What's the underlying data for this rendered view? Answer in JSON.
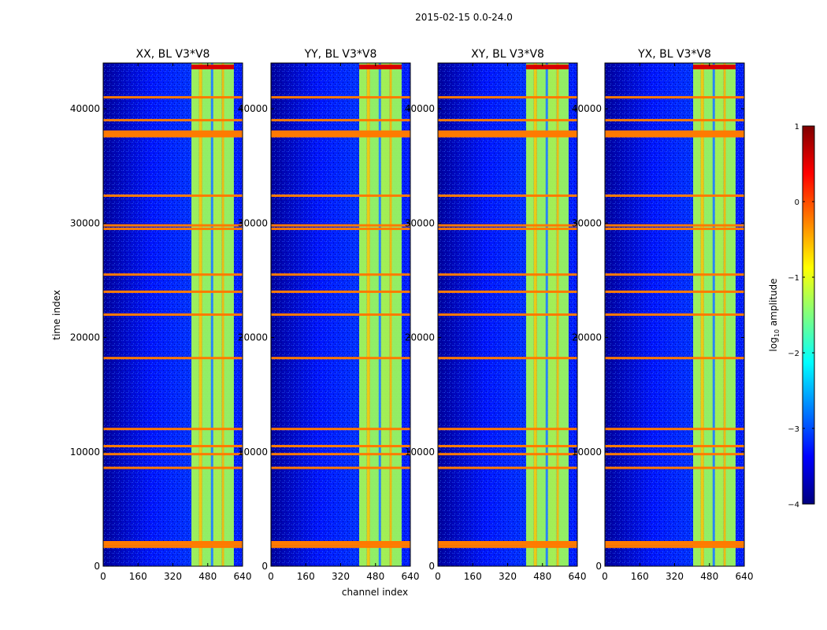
{
  "figure": {
    "suptitle": "2015-02-15 0.0-24.0",
    "xlabel": "channel index",
    "ylabel": "time index"
  },
  "colors": {
    "colormap": "jet",
    "stops": [
      "#00007f",
      "#0000ff",
      "#007fff",
      "#00ffff",
      "#7fff7f",
      "#ffff00",
      "#ff7f00",
      "#ff0000",
      "#7f0000"
    ]
  },
  "chart_data": [
    {
      "type": "heatmap",
      "title": "XX, BL V3*V8",
      "x_range": [
        0,
        640
      ],
      "y_range": [
        0,
        44000
      ],
      "x_ticks": [
        "0",
        "160",
        "320",
        "480",
        "640"
      ],
      "y_ticks": [
        "0",
        "10000",
        "20000",
        "30000",
        "40000"
      ],
      "x_tick_values": [
        0,
        160,
        320,
        480,
        640
      ],
      "y_tick_values": [
        0,
        10000,
        20000,
        30000,
        40000
      ],
      "band_channels": [
        {
          "start": 405,
          "end": 440
        },
        {
          "start": 440,
          "end": 455
        },
        {
          "start": 455,
          "end": 495
        },
        {
          "start": 495,
          "end": 505
        },
        {
          "start": 505,
          "end": 545
        },
        {
          "start": 545,
          "end": 555
        },
        {
          "start": 555,
          "end": 600
        }
      ],
      "flagged_time_rows": [
        1700,
        1900,
        2100,
        8600,
        9800,
        10500,
        12000,
        18200,
        22000,
        24000,
        25500,
        29500,
        29800,
        32400,
        37600,
        37800,
        38000,
        39000,
        41000
      ]
    },
    {
      "type": "heatmap",
      "title": "YY, BL V3*V8",
      "x_range": [
        0,
        640
      ],
      "y_range": [
        0,
        44000
      ],
      "x_ticks": [
        "0",
        "160",
        "320",
        "480",
        "640"
      ],
      "y_ticks": [
        "0",
        "10000",
        "20000",
        "30000",
        "40000"
      ],
      "x_tick_values": [
        0,
        160,
        320,
        480,
        640
      ],
      "y_tick_values": [
        0,
        10000,
        20000,
        30000,
        40000
      ],
      "band_channels": [
        {
          "start": 405,
          "end": 440
        },
        {
          "start": 440,
          "end": 455
        },
        {
          "start": 455,
          "end": 495
        },
        {
          "start": 495,
          "end": 505
        },
        {
          "start": 505,
          "end": 545
        },
        {
          "start": 545,
          "end": 555
        },
        {
          "start": 555,
          "end": 600
        }
      ],
      "flagged_time_rows": [
        1700,
        1900,
        2100,
        8600,
        9800,
        10500,
        12000,
        18200,
        22000,
        24000,
        25500,
        29500,
        29800,
        32400,
        37600,
        37800,
        38000,
        39000,
        41000
      ]
    },
    {
      "type": "heatmap",
      "title": "XY, BL V3*V8",
      "x_range": [
        0,
        640
      ],
      "y_range": [
        0,
        44000
      ],
      "x_ticks": [
        "0",
        "160",
        "320",
        "480",
        "640"
      ],
      "y_ticks": [
        "0",
        "10000",
        "20000",
        "30000",
        "40000"
      ],
      "x_tick_values": [
        0,
        160,
        320,
        480,
        640
      ],
      "y_tick_values": [
        0,
        10000,
        20000,
        30000,
        40000
      ],
      "band_channels": [
        {
          "start": 405,
          "end": 440
        },
        {
          "start": 440,
          "end": 455
        },
        {
          "start": 455,
          "end": 495
        },
        {
          "start": 495,
          "end": 505
        },
        {
          "start": 505,
          "end": 545
        },
        {
          "start": 545,
          "end": 555
        },
        {
          "start": 555,
          "end": 600
        }
      ],
      "flagged_time_rows": [
        1700,
        1900,
        2100,
        8600,
        9800,
        10500,
        12000,
        18200,
        22000,
        24000,
        25500,
        29500,
        29800,
        32400,
        37600,
        37800,
        38000,
        39000,
        41000
      ]
    },
    {
      "type": "heatmap",
      "title": "YX, BL V3*V8",
      "x_range": [
        0,
        640
      ],
      "y_range": [
        0,
        44000
      ],
      "x_ticks": [
        "0",
        "160",
        "320",
        "480",
        "640"
      ],
      "y_ticks": [
        "0",
        "10000",
        "20000",
        "30000",
        "40000"
      ],
      "x_tick_values": [
        0,
        160,
        320,
        480,
        640
      ],
      "y_tick_values": [
        0,
        10000,
        20000,
        30000,
        40000
      ],
      "band_channels": [
        {
          "start": 405,
          "end": 440
        },
        {
          "start": 440,
          "end": 455
        },
        {
          "start": 455,
          "end": 495
        },
        {
          "start": 495,
          "end": 505
        },
        {
          "start": 505,
          "end": 545
        },
        {
          "start": 545,
          "end": 555
        },
        {
          "start": 555,
          "end": 600
        }
      ],
      "flagged_time_rows": [
        1700,
        1900,
        2100,
        8600,
        9800,
        10500,
        12000,
        18200,
        22000,
        24000,
        25500,
        29500,
        29800,
        32400,
        37600,
        37800,
        38000,
        39000,
        41000
      ]
    }
  ],
  "colorbar": {
    "label_prefix": "log",
    "label_sub": "10",
    "label_suffix": " amplitude",
    "range": [
      -4,
      1
    ],
    "tick_values": [
      -4,
      -3,
      -2,
      -1,
      0,
      1
    ],
    "tick_labels": [
      "−4",
      "−3",
      "−2",
      "−1",
      "0",
      "1"
    ]
  }
}
